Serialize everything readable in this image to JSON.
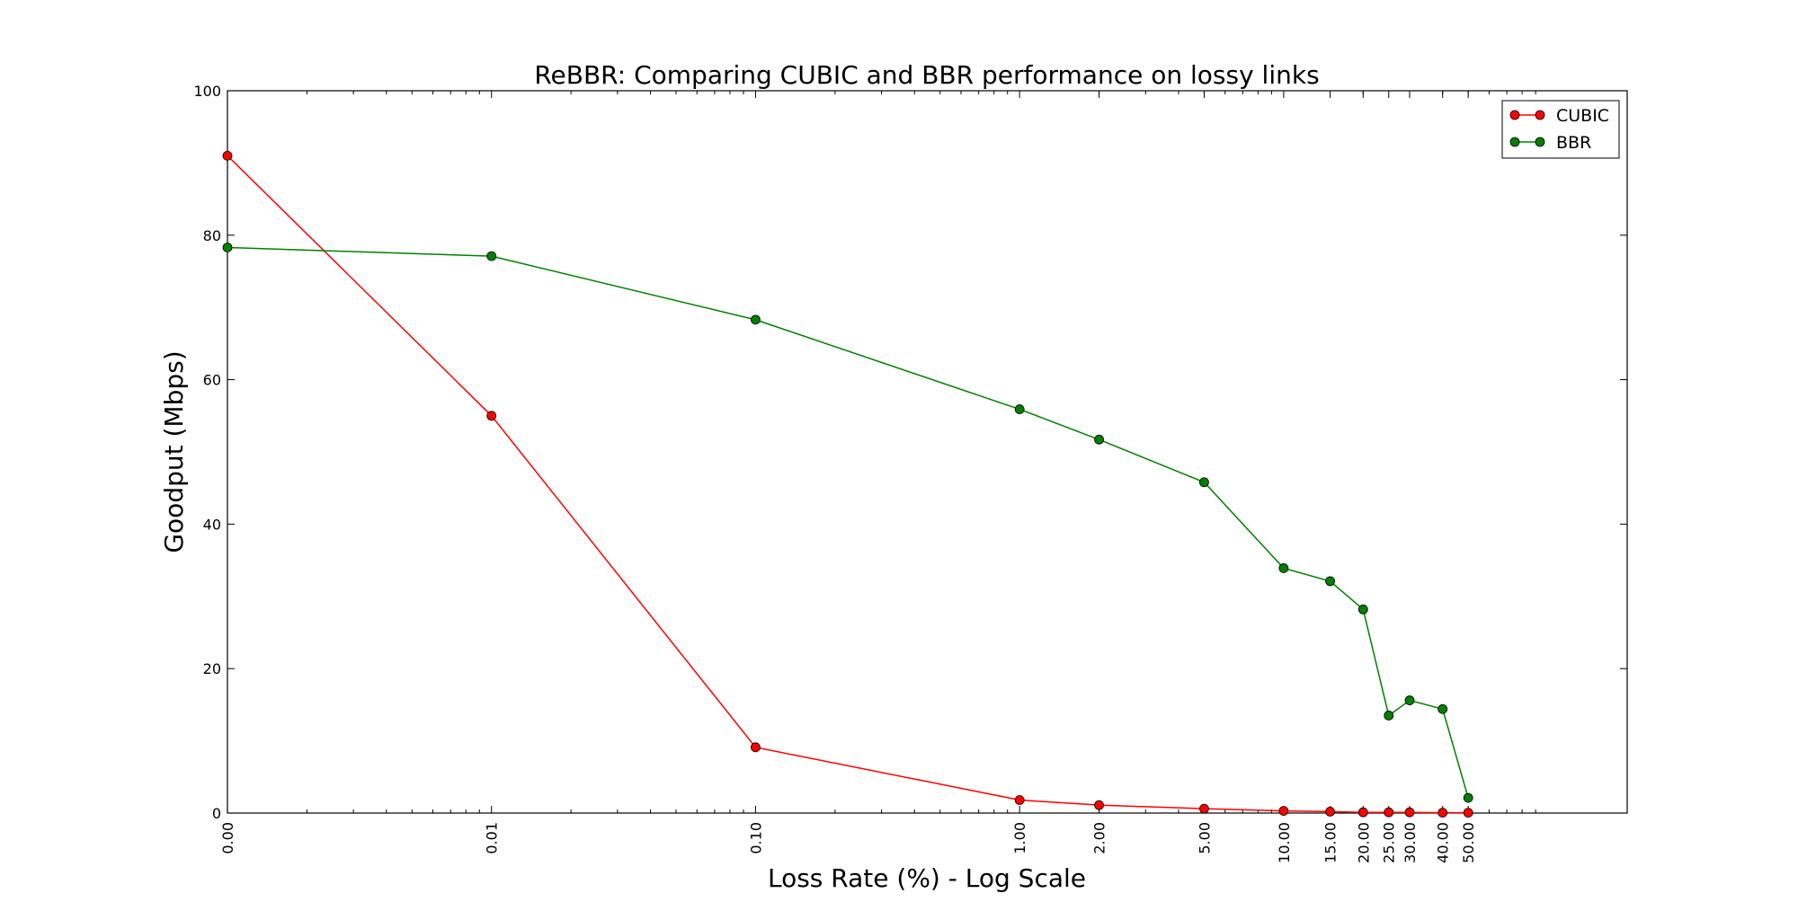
{
  "chart_data": {
    "type": "line",
    "title": "ReBBR: Comparing CUBIC and BBR performance on lossy links",
    "xlabel": "Loss Rate (%) - Log Scale",
    "ylabel": "Goodput (Mbps)",
    "x_scale": "log",
    "xlim": [
      0.001,
      200
    ],
    "ylim": [
      0,
      100
    ],
    "grid": false,
    "legend_position": "top-right",
    "x_ticks": [
      {
        "value": 0.001,
        "label": "0.00"
      },
      {
        "value": 0.01,
        "label": "0.01"
      },
      {
        "value": 0.1,
        "label": "0.10"
      },
      {
        "value": 1,
        "label": "1.00"
      },
      {
        "value": 2,
        "label": "2.00"
      },
      {
        "value": 5,
        "label": "5.00"
      },
      {
        "value": 10,
        "label": "10.00"
      },
      {
        "value": 15,
        "label": "15.00"
      },
      {
        "value": 20,
        "label": "20.00"
      },
      {
        "value": 25,
        "label": "25.00"
      },
      {
        "value": 30,
        "label": "30.00"
      },
      {
        "value": 40,
        "label": "40.00"
      },
      {
        "value": 50,
        "label": "50.00"
      }
    ],
    "y_ticks": [
      {
        "value": 0,
        "label": "0"
      },
      {
        "value": 20,
        "label": "20"
      },
      {
        "value": 40,
        "label": "40"
      },
      {
        "value": 60,
        "label": "60"
      },
      {
        "value": 80,
        "label": "80"
      },
      {
        "value": 100,
        "label": "100"
      }
    ],
    "x": [
      0.001,
      0.01,
      0.1,
      1,
      2,
      5,
      10,
      15,
      20,
      25,
      30,
      40,
      50
    ],
    "series": [
      {
        "name": "CUBIC",
        "color": "#ff0000",
        "marker_color": "#ff0000",
        "values": [
          91.0,
          55.0,
          9.1,
          1.8,
          1.1,
          0.6,
          0.3,
          0.2,
          0.1,
          0.1,
          0.1,
          0.05,
          0.05
        ]
      },
      {
        "name": "BBR",
        "color": "#008000",
        "marker_color": "#008000",
        "values": [
          78.3,
          77.1,
          68.3,
          55.9,
          51.7,
          45.8,
          33.9,
          32.1,
          28.2,
          13.5,
          15.6,
          14.4,
          2.1
        ]
      }
    ]
  }
}
